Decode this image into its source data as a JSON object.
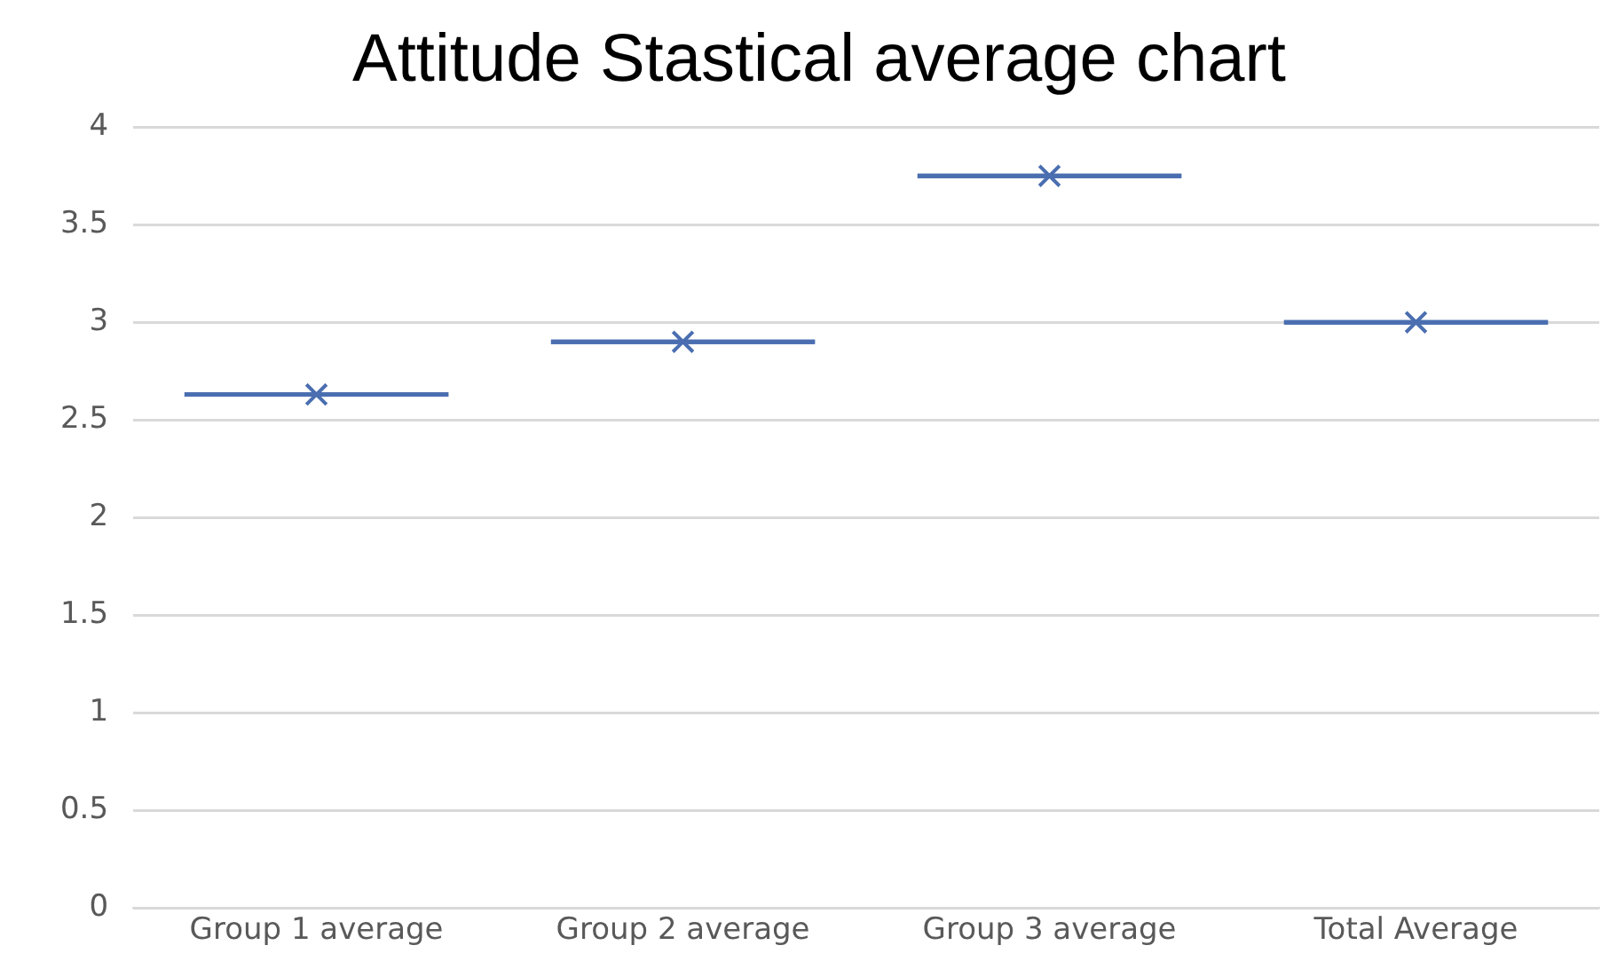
{
  "chart_data": {
    "type": "box",
    "title": "Attitude Stastical average chart",
    "categories": [
      "Group 1 average",
      "Group 2 average",
      "Group 3 average",
      "Total Average"
    ],
    "color": "#4a6eb0",
    "boxes": [
      {
        "low": 2.63,
        "q1": 2.63,
        "median": 2.63,
        "q3": 2.63,
        "high": 2.63,
        "mean": 2.63
      },
      {
        "low": 2.9,
        "q1": 2.9,
        "median": 2.9,
        "q3": 2.9,
        "high": 2.9,
        "mean": 2.9
      },
      {
        "low": 3.75,
        "q1": 3.75,
        "median": 3.75,
        "q3": 3.75,
        "high": 3.75,
        "mean": 3.75
      },
      {
        "low": 3,
        "q1": 3,
        "median": 3,
        "q3": 3,
        "high": 3,
        "mean": 3
      }
    ],
    "ylim": [
      0,
      4
    ],
    "yticks": [
      0,
      0.5,
      1,
      1.5,
      2,
      2.5,
      3,
      3.5,
      4
    ],
    "grid": "y",
    "marker": "cross",
    "legend": false
  }
}
